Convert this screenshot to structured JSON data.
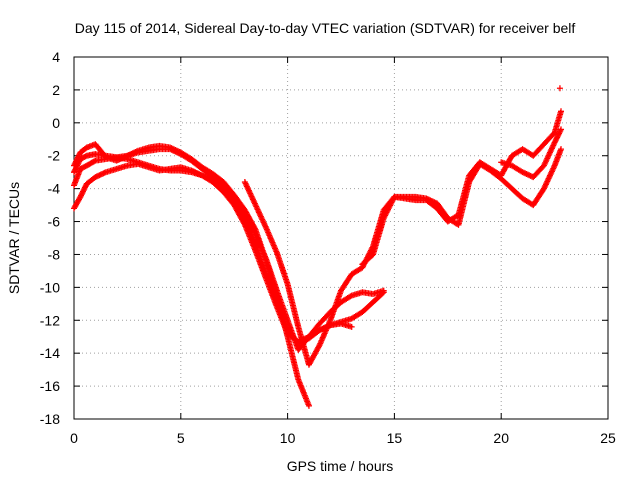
{
  "chart_data": {
    "type": "scatter",
    "title": "Day 115 of 2014, Sidereal Day-to-day VTEC variation (SDTVAR) for receiver belf",
    "xlabel": "GPS time / hours",
    "ylabel": "SDTVAR / TECUs",
    "xlim": [
      0,
      25
    ],
    "ylim": [
      -18,
      4
    ],
    "xticks": [
      "0",
      "5",
      "10",
      "15",
      "20",
      "25"
    ],
    "yticks": [
      "4",
      "2",
      "0",
      "-2",
      "-4",
      "-6",
      "-8",
      "-10",
      "-12",
      "-14",
      "-16",
      "-18"
    ],
    "grid": true,
    "marker": "+",
    "color": "#ff0000",
    "series": [
      {
        "x": [
          0,
          0.3,
          0.6,
          1.0,
          1.5,
          2.0,
          2.5,
          3.0,
          3.5,
          4.0,
          4.5,
          5.0,
          5.5,
          6.0,
          6.5,
          7.0,
          7.5,
          8.0,
          8.5,
          9.0,
          9.5,
          10.0,
          10.5,
          11.0,
          11.5,
          12.0,
          12.5,
          13.0,
          13.5,
          14.0,
          14.5
        ],
        "y": [
          -3.8,
          -2.8,
          -2.6,
          -2.3,
          -2.2,
          -2.1,
          -2.2,
          -2.4,
          -2.6,
          -2.8,
          -2.9,
          -2.9,
          -3.0,
          -3.2,
          -3.6,
          -4.2,
          -5.0,
          -6.2,
          -7.8,
          -9.5,
          -11.2,
          -12.8,
          -13.3,
          -13.0,
          -12.6,
          -12.3,
          -12.1,
          -11.9,
          -11.5,
          -10.9,
          -10.3
        ]
      },
      {
        "x": [
          0,
          0.3,
          0.6,
          1.0,
          1.5,
          2.0,
          2.5,
          3.0,
          3.5,
          4.0,
          4.5,
          5.0,
          5.5,
          6.0,
          6.5,
          7.0,
          7.5,
          8.0,
          8.5,
          9.0,
          9.5,
          10.0,
          10.5,
          11.0,
          11.5,
          12.0,
          12.5,
          13.0
        ],
        "y": [
          -3.0,
          -2.2,
          -2.0,
          -1.9,
          -2.0,
          -2.1,
          -2.0,
          -1.8,
          -1.7,
          -1.6,
          -1.6,
          -1.9,
          -2.3,
          -2.8,
          -3.3,
          -3.9,
          -4.7,
          -5.8,
          -7.4,
          -9.2,
          -11.0,
          -12.6,
          -13.4,
          -13.1,
          -12.6,
          -12.3,
          -12.2,
          -12.4
        ]
      },
      {
        "x": [
          0,
          0.3,
          0.6,
          1.0,
          1.5,
          2.0,
          2.5,
          3.0,
          3.5,
          4.0,
          4.5,
          5.0,
          5.5,
          6.0,
          6.5,
          7.0,
          7.5,
          8.0,
          8.5,
          9.0,
          9.5,
          10.0,
          10.5,
          11.0,
          11.5,
          12.0,
          12.5,
          13.0,
          13.5,
          14.0,
          14.5
        ],
        "y": [
          -5.2,
          -4.5,
          -3.7,
          -3.3,
          -3.0,
          -2.8,
          -2.6,
          -2.5,
          -2.7,
          -2.9,
          -2.8,
          -2.7,
          -2.9,
          -3.2,
          -3.5,
          -3.9,
          -4.6,
          -5.5,
          -6.8,
          -8.3,
          -10.2,
          -12.0,
          -13.8,
          -13.0,
          -12.2,
          -11.5,
          -10.9,
          -10.5,
          -10.3,
          -10.4,
          -10.2
        ]
      },
      {
        "x": [
          0,
          0.3,
          0.6,
          1.0,
          1.5,
          2.0,
          2.5,
          3.0,
          3.5,
          4.0,
          4.5,
          5.0,
          5.5,
          6.0,
          6.5,
          7.0,
          7.5,
          8.0,
          8.5,
          9.0,
          9.5,
          10.0,
          10.5,
          11.0
        ],
        "y": [
          -2.6,
          -1.8,
          -1.5,
          -1.3,
          -2.1,
          -2.3,
          -2.0,
          -1.7,
          -1.5,
          -1.4,
          -1.5,
          -1.8,
          -2.2,
          -2.7,
          -3.1,
          -3.6,
          -4.4,
          -5.3,
          -6.5,
          -8.4,
          -10.5,
          -13.0,
          -15.6,
          -17.2
        ]
      },
      {
        "x": [
          8.0,
          8.5,
          9.0,
          9.5,
          10.0,
          10.5,
          11.0,
          11.5,
          12.0,
          12.5,
          13.0,
          13.5,
          14.0,
          14.5,
          15.0,
          15.5,
          16.0,
          16.5,
          17.0,
          17.5,
          18.0,
          18.5,
          19.0,
          19.5,
          20.0,
          20.5,
          21.0,
          21.5,
          22.0,
          22.5,
          22.8
        ],
        "y": [
          -3.6,
          -5.0,
          -6.4,
          -7.9,
          -9.8,
          -12.4,
          -14.7,
          -13.5,
          -12.0,
          -10.2,
          -9.2,
          -8.8,
          -7.5,
          -5.3,
          -4.5,
          -4.5,
          -4.5,
          -4.6,
          -4.9,
          -5.8,
          -6.2,
          -3.6,
          -2.5,
          -2.9,
          -3.4,
          -4.0,
          -4.6,
          -5.0,
          -4.0,
          -2.6,
          -1.6
        ]
      },
      {
        "x": [
          13.5,
          14.0,
          14.5,
          15.0,
          15.5,
          16.0,
          16.5,
          17.0,
          17.5,
          18.0,
          18.5,
          19.0,
          19.5,
          20.0,
          20.5,
          21.0,
          21.5,
          22.0,
          22.5,
          22.8
        ],
        "y": [
          -8.6,
          -8.0,
          -5.8,
          -4.5,
          -4.6,
          -4.7,
          -4.7,
          -5.2,
          -6.0,
          -5.6,
          -3.2,
          -2.4,
          -2.8,
          -3.2,
          -2.0,
          -1.6,
          -2.0,
          -1.3,
          -0.6,
          0.7
        ]
      },
      {
        "x": [
          20.0,
          20.5,
          21.0,
          21.5,
          22.0,
          22.5,
          22.8
        ],
        "y": [
          -2.4,
          -2.6,
          -3.0,
          -3.3,
          -2.6,
          -1.2,
          -0.4
        ]
      },
      {
        "x": [
          22.75
        ],
        "y": [
          2.1
        ]
      }
    ]
  }
}
